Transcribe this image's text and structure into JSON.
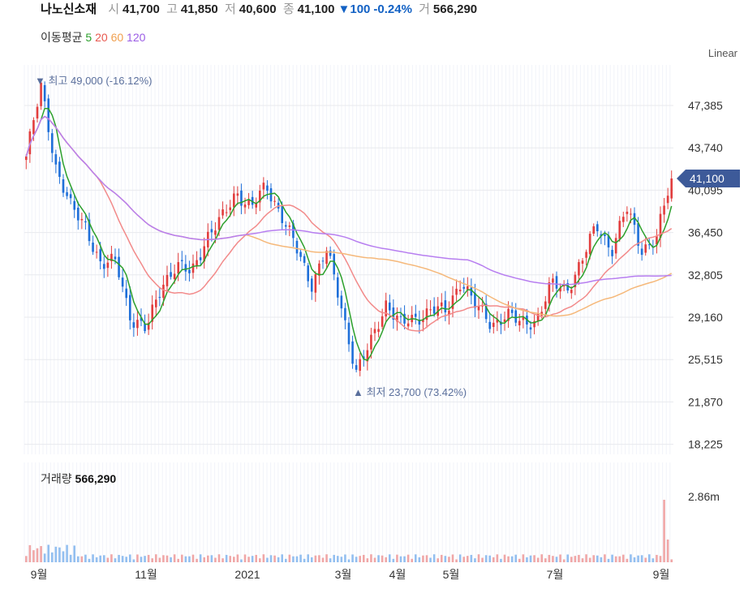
{
  "header": {
    "stock_name": "나노신소재",
    "open_label": "시",
    "open": "41,700",
    "high_label": "고",
    "high": "41,850",
    "low_label": "저",
    "low": "40,600",
    "close_label": "종",
    "close": "41,100",
    "change_arrow": "▼",
    "change": "100",
    "change_pct": "-0.24%",
    "volume_label": "거",
    "volume": "566,290"
  },
  "ma_legend": {
    "label": "이동평균",
    "items": [
      {
        "period": "5",
        "color": "#2ca02c"
      },
      {
        "period": "20",
        "color": "#e8584f"
      },
      {
        "period": "60",
        "color": "#f0a050"
      },
      {
        "period": "120",
        "color": "#9b5de5"
      }
    ]
  },
  "scale_mode": "Linear",
  "volume_panel": {
    "label": "거래량",
    "value": "566,290",
    "tick": "2.86m"
  },
  "colors": {
    "up": "#e23d3d",
    "down": "#1e6fd9",
    "ma5": "#2ca02c",
    "ma20": "#f28a8a",
    "ma60": "#f5b87a",
    "ma120": "#b77ef0",
    "current_tag": "#3d5a99"
  },
  "chart_data": {
    "type": "candlestick",
    "y_axis_ticks": [
      "47,385",
      "43,740",
      "40,095",
      "36,450",
      "32,805",
      "29,160",
      "25,515",
      "21,870",
      "18,225"
    ],
    "ylim": [
      18225,
      47385
    ],
    "x_axis_ticks": [
      "9월",
      "11월",
      "2021",
      "3월",
      "4월",
      "5월",
      "7월",
      "9월"
    ],
    "current_price": "41,100",
    "annotations": {
      "high": {
        "marker": "▼",
        "label": "최고",
        "value": "49,000",
        "pct": "(-16.12%)"
      },
      "low": {
        "marker": "▲",
        "label": "최저",
        "value": "23,700",
        "pct": "(73.42%)"
      }
    },
    "close_path": [
      {
        "m": "9월",
        "v": 43000
      },
      {
        "m": "9월",
        "v": 49000
      },
      {
        "m": "9월",
        "v": 42000
      },
      {
        "m": "10월",
        "v": 38500
      },
      {
        "m": "10월",
        "v": 37000
      },
      {
        "m": "10월",
        "v": 33500
      },
      {
        "m": "10월",
        "v": 34000
      },
      {
        "m": "11월",
        "v": 29000
      },
      {
        "m": "11월",
        "v": 28000
      },
      {
        "m": "11월",
        "v": 32000
      },
      {
        "m": "11월",
        "v": 33500
      },
      {
        "m": "12월",
        "v": 33000
      },
      {
        "m": "12월",
        "v": 36000
      },
      {
        "m": "12월",
        "v": 37500
      },
      {
        "m": "12월",
        "v": 40000
      },
      {
        "m": "2021",
        "v": 38500
      },
      {
        "m": "2021",
        "v": 40500
      },
      {
        "m": "2021",
        "v": 38000
      },
      {
        "m": "2월",
        "v": 35000
      },
      {
        "m": "2월",
        "v": 32000
      },
      {
        "m": "2월",
        "v": 35000
      },
      {
        "m": "3월",
        "v": 30000
      },
      {
        "m": "3월",
        "v": 24500
      },
      {
        "m": "3월",
        "v": 27000
      },
      {
        "m": "3월",
        "v": 30500
      },
      {
        "m": "4월",
        "v": 28500
      },
      {
        "m": "4월",
        "v": 29000
      },
      {
        "m": "4월",
        "v": 30000
      },
      {
        "m": "5월",
        "v": 29500
      },
      {
        "m": "5월",
        "v": 32500
      },
      {
        "m": "5월",
        "v": 30000
      },
      {
        "m": "6월",
        "v": 28500
      },
      {
        "m": "6월",
        "v": 29500
      },
      {
        "m": "6월",
        "v": 28500
      },
      {
        "m": "6월",
        "v": 29000
      },
      {
        "m": "7월",
        "v": 32000
      },
      {
        "m": "7월",
        "v": 31500
      },
      {
        "m": "7월",
        "v": 34000
      },
      {
        "m": "8월",
        "v": 37000
      },
      {
        "m": "8월",
        "v": 35000
      },
      {
        "m": "8월",
        "v": 38500
      },
      {
        "m": "8월",
        "v": 35000
      },
      {
        "m": "9월",
        "v": 36000
      },
      {
        "m": "9월",
        "v": 41100
      }
    ]
  }
}
